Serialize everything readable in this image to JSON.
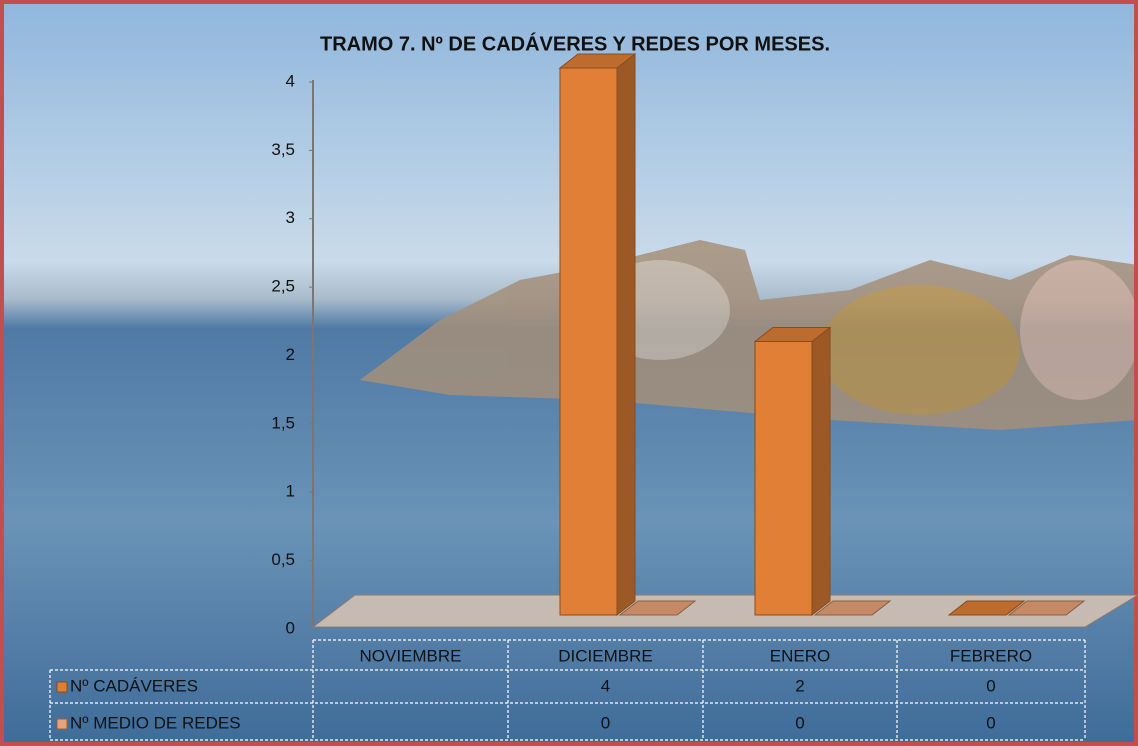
{
  "chart_data": {
    "type": "bar3d",
    "title": "TRAMO 7. Nº DE CADÁVERES  Y REDES POR MESES.",
    "categories": [
      "NOVIEMBRE",
      "DICIEMBRE",
      "ENERO",
      "FEBRERO"
    ],
    "series": [
      {
        "name": "Nº CADÁVERES",
        "color": "#e07f35",
        "values": [
          null,
          4,
          2,
          0
        ]
      },
      {
        "name": "Nº MEDIO DE REDES",
        "color": "#e8a277",
        "values": [
          null,
          0,
          0,
          0
        ]
      }
    ],
    "ylim": [
      0,
      4
    ],
    "yticks": [
      0,
      {
        "value": 0.5,
        "label": "0,5"
      },
      1,
      {
        "value": 1.5,
        "label": "1,5"
      },
      2,
      {
        "value": 2.5,
        "label": "2,5"
      },
      3,
      {
        "value": 3.5,
        "label": "3,5"
      },
      4
    ],
    "data_table": true
  }
}
